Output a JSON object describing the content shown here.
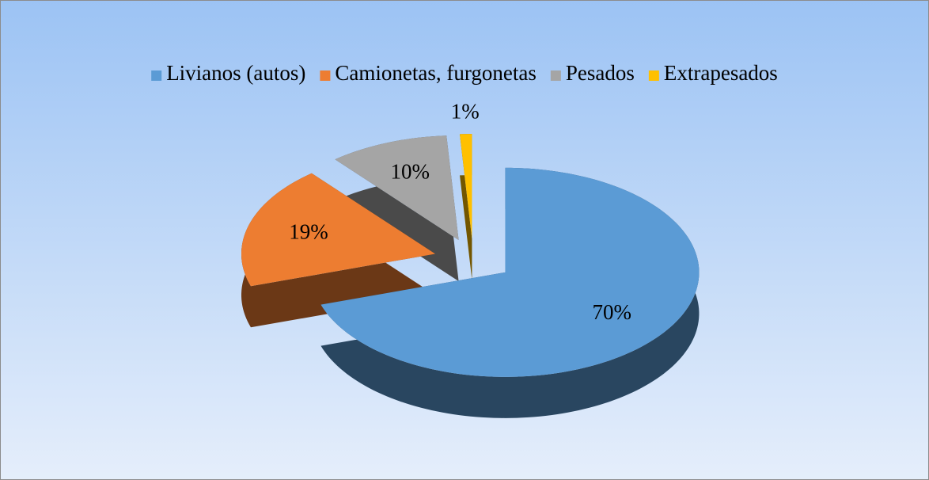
{
  "chart_data": {
    "type": "pie",
    "categories": [
      "Livianos (autos)",
      "Camionetas, furgonetas",
      "Pesados",
      "Extrapesados"
    ],
    "values": [
      70,
      19,
      10,
      1
    ],
    "value_labels": [
      "70%",
      "19%",
      "10%",
      "1%"
    ],
    "colors": [
      "#5b9bd5",
      "#ed7d31",
      "#a5a5a5",
      "#ffc000"
    ],
    "legend": "top"
  }
}
